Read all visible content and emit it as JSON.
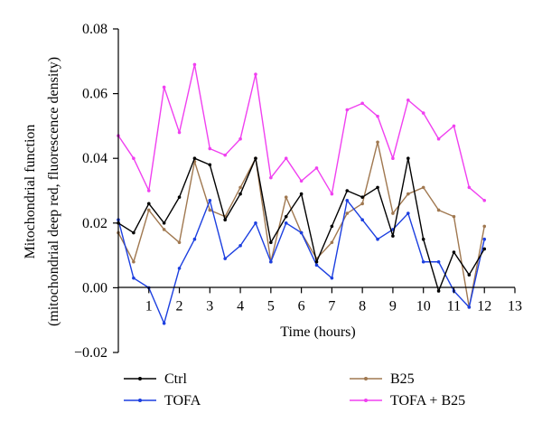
{
  "chart_data": {
    "type": "line",
    "title": "",
    "xlabel": "Time (hours)",
    "ylabel_line1": "Mitochondrial function",
    "ylabel_line2": "(mitochondrial deep red, fluorescence density)",
    "xlim": [
      0,
      13
    ],
    "ylim": [
      -0.02,
      0.08
    ],
    "x_ticks": [
      "1",
      "2",
      "3",
      "4",
      "5",
      "6",
      "7",
      "8",
      "9",
      "10",
      "11",
      "12",
      "13"
    ],
    "y_ticks": [
      "0.08",
      "0.06",
      "0.04",
      "0.02",
      "0.00",
      "−0.02"
    ],
    "grid": false,
    "legend_position": "bottom",
    "x": [
      0,
      0.5,
      1,
      1.5,
      2,
      2.5,
      3,
      3.5,
      4,
      4.5,
      5,
      5.5,
      6,
      6.5,
      7,
      7.5,
      8,
      8.5,
      9,
      9.5,
      10,
      10.5,
      11,
      11.5,
      12
    ],
    "series": [
      {
        "name": "Ctrl",
        "color": "#000000",
        "values": [
          0.02,
          0.017,
          0.026,
          0.02,
          0.028,
          0.04,
          0.038,
          0.021,
          0.029,
          0.04,
          0.014,
          0.022,
          0.029,
          0.008,
          0.019,
          0.03,
          0.028,
          0.031,
          0.016,
          0.04,
          0.015,
          -0.001,
          0.011,
          0.004,
          0.012
        ]
      },
      {
        "name": "B25",
        "color": "#a07850",
        "values": [
          0.017,
          0.008,
          0.024,
          0.018,
          0.014,
          0.039,
          0.024,
          0.022,
          0.031,
          0.04,
          0.008,
          0.028,
          0.017,
          0.009,
          0.014,
          0.023,
          0.026,
          0.045,
          0.023,
          0.029,
          0.031,
          0.024,
          0.022,
          -0.006,
          0.019
        ]
      },
      {
        "name": "TOFA",
        "color": "#1c3fe0",
        "values": [
          0.021,
          0.003,
          0.0,
          -0.011,
          0.006,
          0.015,
          0.027,
          0.009,
          0.013,
          0.02,
          0.008,
          0.02,
          0.017,
          0.007,
          0.003,
          0.027,
          0.021,
          0.015,
          0.018,
          0.023,
          0.008,
          0.008,
          -0.001,
          -0.006,
          0.015
        ]
      },
      {
        "name": "TOFA + B25",
        "color": "#f040f0",
        "values": [
          0.047,
          0.04,
          0.03,
          0.062,
          0.048,
          0.069,
          0.043,
          0.041,
          0.046,
          0.066,
          0.034,
          0.04,
          0.033,
          0.037,
          0.029,
          0.055,
          0.057,
          0.053,
          0.04,
          0.058,
          0.054,
          0.046,
          0.05,
          0.031,
          0.027
        ]
      }
    ]
  }
}
